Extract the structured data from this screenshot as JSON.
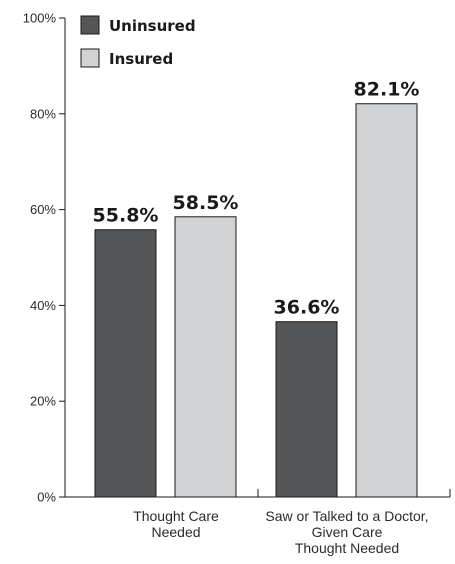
{
  "chart_data": {
    "type": "bar",
    "title": "",
    "xlabel": "",
    "ylabel": "",
    "ylim": [
      0,
      100
    ],
    "yticks": [
      0,
      20,
      40,
      60,
      80,
      100
    ],
    "ytick_labels": [
      "0%",
      "20%",
      "40%",
      "60%",
      "80%",
      "100%"
    ],
    "categories": [
      [
        "Thought Care",
        "Needed"
      ],
      [
        "Saw or Talked to a Doctor,",
        "Given Care",
        "Thought Needed"
      ]
    ],
    "series": [
      {
        "name": "Uninsured",
        "color": "#555658",
        "values": [
          55.8,
          36.6
        ],
        "labels": [
          "55.8%",
          "36.6%"
        ]
      },
      {
        "name": "Insured",
        "color": "#d1d2d4",
        "values": [
          58.5,
          82.1
        ],
        "labels": [
          "58.5%",
          "82.1%"
        ]
      }
    ],
    "legend_position": "top-left",
    "grid": false
  }
}
